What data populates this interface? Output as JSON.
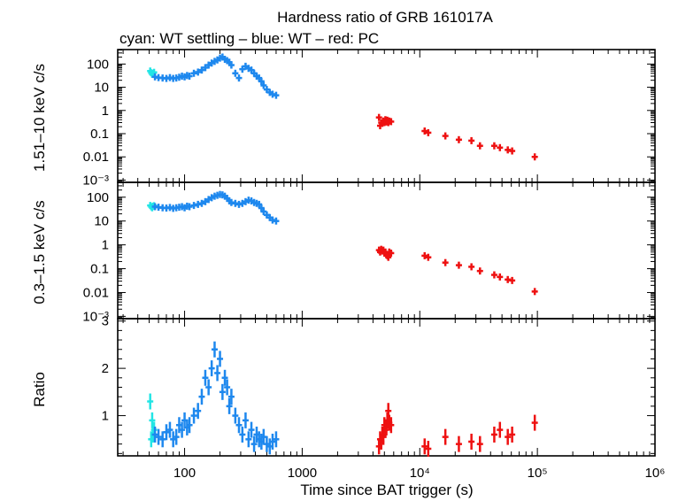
{
  "title": "Hardness ratio of GRB 161017A",
  "subtitle": "cyan: WT settling – blue: WT – red: PC",
  "xlabel": "Time since BAT trigger (s)",
  "colors": {
    "wt_settling": "#22e5e5",
    "wt": "#1e88ee",
    "pc": "#ee1111"
  },
  "chart_data": [
    {
      "type": "scatter",
      "panel": "hard",
      "ylabel": "1.51–10 keV c/s",
      "xscale": "log",
      "yscale": "log",
      "xlim": [
        27,
        1000000
      ],
      "ylim": [
        0.0008,
        420
      ],
      "x_ticks": [
        100,
        1000,
        10000,
        100000,
        1000000
      ],
      "y_ticks": [
        100,
        10,
        1,
        0.1,
        0.01,
        0.001
      ],
      "y_tick_labels": [
        "100",
        "10",
        "1",
        "0.1",
        "0.01",
        "10⁻³"
      ],
      "series": [
        {
          "color": "wt_settling",
          "x": [
            51,
            52,
            53,
            54,
            55
          ],
          "y": [
            50,
            42,
            36,
            40,
            44
          ]
        },
        {
          "color": "wt",
          "x": [
            56,
            60,
            65,
            70,
            75,
            80,
            85,
            90,
            95,
            100,
            105,
            110,
            120,
            130,
            140,
            150,
            160,
            170,
            180,
            190,
            200,
            210,
            220,
            230,
            240,
            250,
            270,
            290,
            310,
            330,
            350,
            370,
            390,
            410,
            430,
            450,
            470,
            500,
            530,
            560,
            600
          ],
          "y": [
            28,
            26,
            25,
            24,
            26,
            24,
            25,
            27,
            30,
            28,
            32,
            30,
            40,
            45,
            55,
            70,
            90,
            110,
            130,
            150,
            180,
            200,
            160,
            140,
            120,
            90,
            40,
            25,
            60,
            80,
            65,
            55,
            40,
            30,
            25,
            18,
            12,
            8,
            6,
            5,
            4.5
          ]
        },
        {
          "color": "pc",
          "x": [
            4500,
            4600,
            4700,
            4800,
            4900,
            5000,
            5100,
            5200,
            5300,
            5400,
            5500,
            5700,
            11000,
            11800,
            16500,
            21500,
            27500,
            32500,
            43000,
            48000,
            56000,
            61000,
            95000
          ],
          "y": [
            0.5,
            0.22,
            0.3,
            0.28,
            0.35,
            0.3,
            0.4,
            0.32,
            0.38,
            0.3,
            0.35,
            0.33,
            0.13,
            0.11,
            0.08,
            0.055,
            0.05,
            0.03,
            0.03,
            0.025,
            0.02,
            0.018,
            0.01
          ]
        }
      ]
    },
    {
      "type": "scatter",
      "panel": "soft",
      "ylabel": "0.3–1.5 keV c/s",
      "xscale": "log",
      "yscale": "log",
      "xlim": [
        27,
        1000000
      ],
      "ylim": [
        0.0008,
        420
      ],
      "x_ticks": [
        100,
        1000,
        10000,
        100000,
        1000000
      ],
      "y_ticks": [
        100,
        10,
        1,
        0.1,
        0.01,
        0.001
      ],
      "y_tick_labels": [
        "100",
        "10",
        "1",
        "0.1",
        "0.01",
        "10⁻³"
      ],
      "series": [
        {
          "color": "wt_settling",
          "x": [
            51,
            52,
            53,
            54,
            55
          ],
          "y": [
            45,
            40,
            36,
            42,
            44
          ]
        },
        {
          "color": "wt",
          "x": [
            56,
            60,
            65,
            70,
            75,
            80,
            85,
            90,
            95,
            100,
            105,
            110,
            120,
            130,
            140,
            150,
            160,
            170,
            180,
            190,
            200,
            210,
            220,
            230,
            240,
            250,
            270,
            290,
            310,
            330,
            350,
            370,
            390,
            410,
            430,
            450,
            470,
            500,
            530,
            560,
            600
          ],
          "y": [
            40,
            38,
            36,
            35,
            37,
            34,
            36,
            38,
            40,
            36,
            42,
            40,
            45,
            50,
            55,
            65,
            80,
            95,
            110,
            120,
            130,
            125,
            110,
            90,
            70,
            60,
            55,
            50,
            55,
            65,
            75,
            70,
            60,
            55,
            50,
            35,
            25,
            18,
            14,
            11,
            10
          ]
        },
        {
          "color": "pc",
          "x": [
            4500,
            4600,
            4700,
            4800,
            4900,
            5000,
            5100,
            5200,
            5300,
            5400,
            5500,
            5700,
            11000,
            11800,
            16500,
            21500,
            27500,
            32500,
            43000,
            48000,
            56000,
            61000,
            95000
          ],
          "y": [
            0.6,
            0.5,
            0.65,
            0.55,
            0.6,
            0.45,
            0.5,
            0.4,
            0.35,
            0.3,
            0.5,
            0.45,
            0.35,
            0.3,
            0.18,
            0.14,
            0.12,
            0.08,
            0.055,
            0.045,
            0.035,
            0.032,
            0.011
          ]
        }
      ]
    },
    {
      "type": "scatter",
      "panel": "ratio",
      "ylabel": "Ratio",
      "xscale": "log",
      "yscale": "linear",
      "xlim": [
        27,
        1000000
      ],
      "ylim": [
        0.15,
        3.05
      ],
      "x_ticks": [
        100,
        1000,
        10000,
        100000,
        1000000
      ],
      "x_tick_labels": [
        "100",
        "1000",
        "10⁴",
        "10⁵",
        "10⁶"
      ],
      "y_ticks": [
        1,
        2,
        3
      ],
      "y_tick_labels": [
        "1",
        "2",
        "3"
      ],
      "series": [
        {
          "color": "wt_settling",
          "x": [
            51,
            52,
            53,
            54,
            55
          ],
          "y": [
            1.3,
            0.5,
            0.9,
            0.6,
            0.7
          ]
        },
        {
          "color": "wt",
          "x": [
            56,
            60,
            65,
            70,
            75,
            80,
            85,
            90,
            95,
            100,
            105,
            110,
            120,
            130,
            140,
            150,
            160,
            170,
            180,
            190,
            200,
            210,
            220,
            230,
            240,
            250,
            270,
            290,
            310,
            330,
            350,
            370,
            390,
            410,
            430,
            450,
            470,
            500,
            530,
            560,
            600
          ],
          "y": [
            0.6,
            0.55,
            0.5,
            0.65,
            0.7,
            0.5,
            0.55,
            0.8,
            0.7,
            0.9,
            0.75,
            0.8,
            1.0,
            1.1,
            1.4,
            1.8,
            1.6,
            2.0,
            2.4,
            1.9,
            2.2,
            1.5,
            1.8,
            1.6,
            1.2,
            1.4,
            1.0,
            0.8,
            0.6,
            0.9,
            0.5,
            0.7,
            0.4,
            0.6,
            0.5,
            0.45,
            0.55,
            0.4,
            0.35,
            0.45,
            0.5
          ]
        },
        {
          "color": "pc",
          "x": [
            4500,
            4600,
            4700,
            4800,
            4900,
            5000,
            5100,
            5200,
            5300,
            5400,
            5500,
            5700,
            11000,
            11800,
            16500,
            21500,
            27500,
            32500,
            43000,
            48000,
            56000,
            61000,
            95000
          ],
          "y": [
            0.35,
            0.5,
            0.45,
            0.6,
            0.55,
            0.8,
            0.7,
            0.75,
            0.9,
            1.1,
            0.85,
            0.8,
            0.35,
            0.3,
            0.55,
            0.4,
            0.45,
            0.4,
            0.6,
            0.7,
            0.55,
            0.6,
            0.85
          ]
        }
      ]
    }
  ]
}
